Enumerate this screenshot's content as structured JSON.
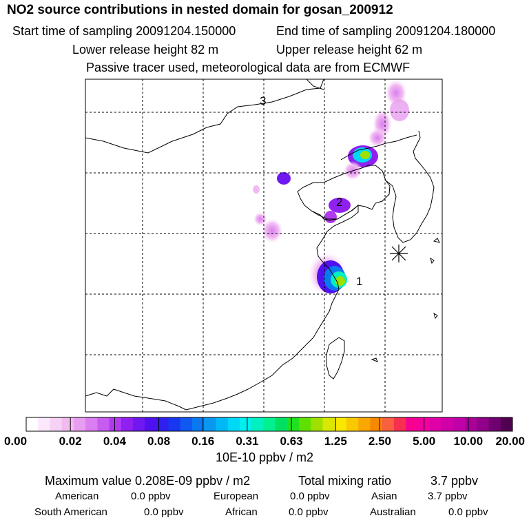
{
  "header": {
    "title": "NO2 source contributions in nested domain for gosan_200912",
    "start_time": "Start time of sampling 20091204.150000",
    "end_time": "End time of sampling 20091204.180000",
    "lower_height": "Lower release height   82 m",
    "upper_height": "Upper release height   62 m",
    "note": "Passive tracer used, meteorological data are from ECMWF"
  },
  "chart_data": {
    "type": "heatmap",
    "title": "NO2 source contributions in nested domain for gosan_200912",
    "map_labels": [
      "1",
      "2",
      "3"
    ],
    "colorbar": {
      "tick_labels": [
        "0.00",
        "0.02",
        "0.04",
        "0.08",
        "0.16",
        "0.31",
        "0.63",
        "1.25",
        "2.50",
        "5.00",
        "10.00",
        "20.00"
      ],
      "tick_values": [
        0.0,
        0.02,
        0.04,
        0.08,
        0.16,
        0.31,
        0.63,
        1.25,
        2.5,
        5.0,
        10.0,
        20.0
      ],
      "unit_label": "10E-10 ppbv / m2",
      "colors": [
        "#ffffff",
        "#fbe8fb",
        "#f6d2f6",
        "#f1bbf1",
        "#e89ef0",
        "#da7ef0",
        "#c85cf0",
        "#b13af0",
        "#9020f0",
        "#7018f0",
        "#5010f0",
        "#3020f0",
        "#1838f0",
        "#1058f0",
        "#0a78f0",
        "#0898f0",
        "#00b8f8",
        "#00d8f8",
        "#00f0f0",
        "#00f0c0",
        "#00f090",
        "#00e060",
        "#20e020",
        "#60e000",
        "#a0e000",
        "#d8e800",
        "#f8e800",
        "#f8c800",
        "#f8a800",
        "#f88800",
        "#f86040",
        "#f83050",
        "#f80090",
        "#f000a0",
        "#e000a8",
        "#d000a8",
        "#c000a8",
        "#a80098",
        "#900088",
        "#700070",
        "#500050"
      ]
    }
  },
  "stats": {
    "max_label": "Maximum value  0.208E-09 ppbv / m2",
    "total_label": "Total mixing ratio",
    "total_value": "3.7 ppbv",
    "regions": [
      {
        "name": "American",
        "value": "0.0 ppbv"
      },
      {
        "name": "European",
        "value": "0.0 ppbv"
      },
      {
        "name": "Asian",
        "value": "3.7 ppbv"
      },
      {
        "name": "South American",
        "value": "0.0 ppbv"
      },
      {
        "name": "African",
        "value": "0.0 ppbv"
      },
      {
        "name": "Australian",
        "value": "0.0 ppbv"
      }
    ]
  }
}
